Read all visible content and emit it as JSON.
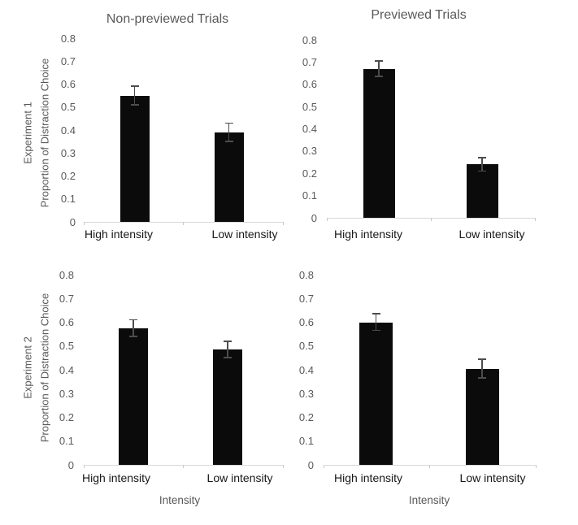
{
  "figure": {
    "background": "#ffffff",
    "column_titles": [
      "Non-previewed Trials",
      "Previewed Trials"
    ],
    "row_labels": [
      "Experiment 1",
      "Experiment 2"
    ],
    "shared_ylabel": "Proportion of Distraction Choice",
    "shared_xlabel": "Intensity"
  },
  "colors": {
    "bar": "#0b0b0b",
    "error_bar": "#4d4d4d",
    "axis_line": "#d8d8d8",
    "title_text": "#595959",
    "tick_text": "#595959",
    "category_text": "#171717"
  },
  "chart_data": [
    {
      "id": "exp1-nonpreviewed",
      "type": "bar",
      "title": "Non-previewed Trials",
      "row_label": "Experiment 1",
      "ylabel": "Proportion of Distraction Choice",
      "xlabel": "",
      "categories": [
        "High intensity",
        "Low intensity"
      ],
      "values": [
        0.55,
        0.39
      ],
      "errors": [
        0.04,
        0.04
      ],
      "ylim": [
        0,
        0.8
      ],
      "yticks": [
        "0",
        "0.1",
        "0.2",
        "0.3",
        "0.4",
        "0.5",
        "0.6",
        "0.7",
        "0.8"
      ],
      "grid": false,
      "legend": "none"
    },
    {
      "id": "exp1-previewed",
      "type": "bar",
      "title": "Previewed Trials",
      "row_label": "",
      "ylabel": "",
      "xlabel": "",
      "categories": [
        "High intensity",
        "Low intensity"
      ],
      "values": [
        0.67,
        0.24
      ],
      "errors": [
        0.035,
        0.03
      ],
      "ylim": [
        0,
        0.8
      ],
      "yticks": [
        "0",
        "0.1",
        "0.2",
        "0.3",
        "0.4",
        "0.5",
        "0.6",
        "0.7",
        "0.8"
      ],
      "grid": false,
      "legend": "none"
    },
    {
      "id": "exp2-nonpreviewed",
      "type": "bar",
      "title": "",
      "row_label": "Experiment 2",
      "ylabel": "Proportion of Distraction Choice",
      "xlabel": "Intensity",
      "categories": [
        "High intensity",
        "Low intensity"
      ],
      "values": [
        0.575,
        0.485
      ],
      "errors": [
        0.035,
        0.035
      ],
      "ylim": [
        0,
        0.8
      ],
      "yticks": [
        "0",
        "0.1",
        "0.2",
        "0.3",
        "0.4",
        "0.5",
        "0.6",
        "0.7",
        "0.8"
      ],
      "grid": false,
      "legend": "none"
    },
    {
      "id": "exp2-previewed",
      "type": "bar",
      "title": "",
      "row_label": "",
      "ylabel": "",
      "xlabel": "Intensity",
      "categories": [
        "High intensity",
        "Low intensity"
      ],
      "values": [
        0.6,
        0.405
      ],
      "errors": [
        0.035,
        0.04
      ],
      "ylim": [
        0,
        0.8
      ],
      "yticks": [
        "0",
        "0.1",
        "0.2",
        "0.3",
        "0.4",
        "0.5",
        "0.6",
        "0.7",
        "0.8"
      ],
      "grid": false,
      "legend": "none"
    }
  ]
}
